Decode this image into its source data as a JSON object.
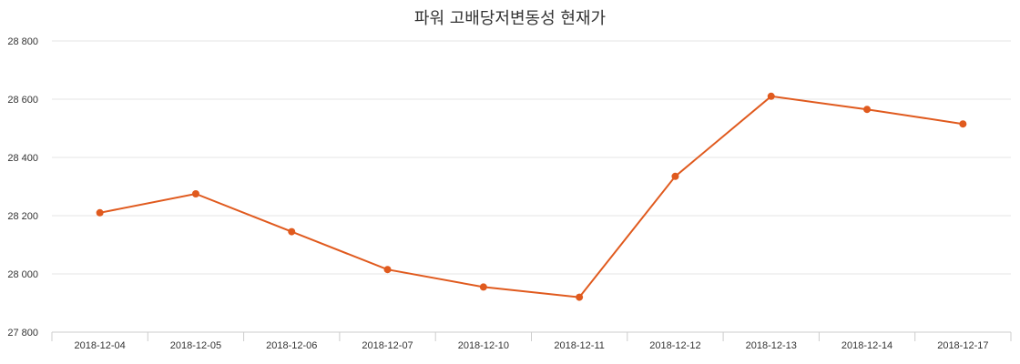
{
  "chart_data": {
    "type": "line",
    "title": "파워 고배당저변동성 현재가",
    "xlabel": "",
    "ylabel": "",
    "categories": [
      "2018-12-04",
      "2018-12-05",
      "2018-12-06",
      "2018-12-07",
      "2018-12-10",
      "2018-12-11",
      "2018-12-12",
      "2018-12-13",
      "2018-12-14",
      "2018-12-17"
    ],
    "series": [
      {
        "name": "현재가",
        "color": "#E05A1E",
        "values": [
          28210,
          28275,
          28145,
          28015,
          27955,
          27920,
          28335,
          28610,
          28565,
          28515
        ]
      }
    ],
    "ylim": [
      27800,
      28800
    ],
    "yticks": [
      27800,
      28000,
      28200,
      28400,
      28600,
      28800
    ],
    "ytick_labels": [
      "27 800",
      "28 000",
      "28 200",
      "28 400",
      "28 600",
      "28 800"
    ],
    "grid": true,
    "legend": "none"
  },
  "colors": {
    "line": "#E05A1E",
    "grid": "#e6e6e6",
    "axis": "#cccccc",
    "text": "#333333"
  }
}
